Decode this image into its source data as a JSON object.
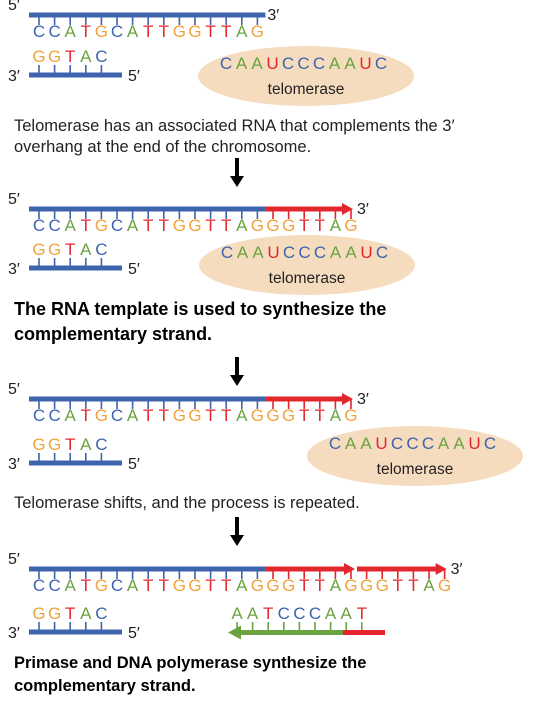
{
  "colors": {
    "dna_strand": "#3d64ad",
    "new_dna": "#e3262b",
    "primer_strand": "#6aa33f",
    "enzyme_fill": "#f6dcbf",
    "arrow": "#000000",
    "base_A": "#6aa33f",
    "base_T": "#e3262b",
    "base_U": "#e3262b",
    "base_G": "#f0a33c",
    "base_C": "#3d64ad"
  },
  "end_labels": {
    "five_prime": "5′",
    "three_prime": "3′"
  },
  "enzyme_label": "telomerase",
  "rna_template": "CAAUCCCAAUC",
  "steps": [
    {
      "top_strand": {
        "original": "CCATGCATTGGTTAG",
        "extension": ""
      },
      "bottom_strand": "GGTAC",
      "caption": "Telomerase has an associated RNA that complements the 3′ overhang at the end of the chromosome.",
      "caption_style": "normal"
    },
    {
      "top_strand": {
        "original": "CCATGCATTGGTTAG",
        "extension": "GGTTAG"
      },
      "bottom_strand": "GGTAC",
      "caption": "The RNA template is used to synthesize the complementary strand.",
      "caption_style": "bold"
    },
    {
      "top_strand": {
        "original": "CCATGCATTGGTTAG",
        "extension": "GGTTAG"
      },
      "bottom_strand": "GGTAC",
      "caption": "Telomerase shifts, and the process is repeated.",
      "caption_style": "normal"
    },
    {
      "top_strand": {
        "original": "CCATGCATTGGTTAG",
        "extension": "GGTTAGGGTTAG"
      },
      "bottom_strand": "GGTAC",
      "new_complement": "AATCCCAAT",
      "caption": "Primase and DNA polymerase synthesize the complementary strand.",
      "caption_style": "bold"
    }
  ]
}
